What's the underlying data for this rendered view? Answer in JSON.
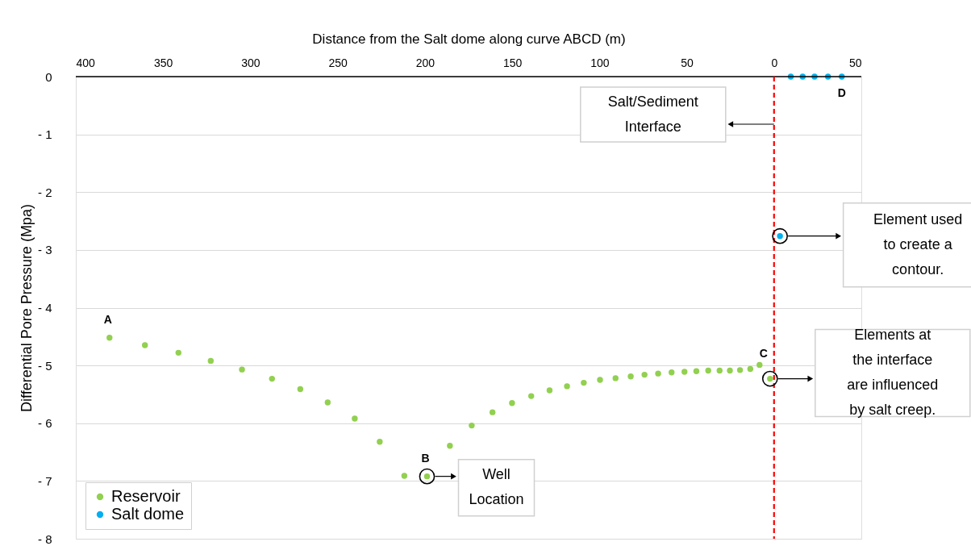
{
  "chart_data": {
    "type": "scatter",
    "xlabel": "Distance from the Salt dome along curve ABCD (m)",
    "ylabel": "Differential Pore Pressure (Mpa)",
    "xlim": [
      400,
      -50
    ],
    "xticks": [
      400,
      350,
      300,
      250,
      200,
      150,
      100,
      50,
      0,
      {
        "value": -50,
        "label": "50"
      }
    ],
    "ylim": [
      -8,
      0
    ],
    "yticks": [
      0,
      {
        "value": -1,
        "label": "- 1"
      },
      {
        "value": -2,
        "label": "- 2"
      },
      {
        "value": -3,
        "label": "- 3"
      },
      {
        "value": -4,
        "label": "- 4"
      },
      {
        "value": -5,
        "label": "- 5"
      },
      {
        "value": -6,
        "label": "- 6"
      },
      {
        "value": -7,
        "label": "- 7"
      },
      {
        "value": -8,
        "label": "- 8"
      }
    ],
    "grid": "y",
    "legend": "bottom left",
    "marker": "circle",
    "series": [
      {
        "name": "Reservoir",
        "color": "#92d050",
        "x": [
          380.7,
          360.4,
          341.2,
          322.7,
          304.8,
          287.6,
          271.4,
          255.7,
          240.2,
          225.9,
          211.8,
          198.8,
          185.7,
          173.2,
          161.3,
          150.1,
          139.1,
          128.6,
          118.6,
          109.0,
          99.7,
          90.8,
          82.1,
          74.2,
          66.4,
          58.7,
          51.3,
          44.5,
          37.7,
          31.2,
          25.3,
          19.5,
          13.6,
          8.3,
          2.3
        ],
        "values": [
          -4.52,
          -4.65,
          -4.78,
          -4.92,
          -5.07,
          -5.23,
          -5.41,
          -5.64,
          -5.92,
          -6.32,
          -6.91,
          -6.92,
          -6.39,
          -6.04,
          -5.81,
          -5.65,
          -5.53,
          -5.43,
          -5.36,
          -5.3,
          -5.25,
          -5.22,
          -5.19,
          -5.16,
          -5.14,
          -5.12,
          -5.11,
          -5.1,
          -5.09,
          -5.09,
          -5.09,
          -5.08,
          -5.06,
          -4.99,
          -5.23
        ]
      },
      {
        "name": "Salt dome",
        "color": "#00b0f0",
        "x": [
          -9.6,
          -16.4,
          -23.2,
          -30.9,
          -38.8,
          -3.4
        ],
        "values": [
          0,
          0,
          0,
          0,
          0,
          -2.76
        ]
      }
    ],
    "ref_lines": [
      {
        "axis": "x",
        "value": 0,
        "color": "#ff0000",
        "line_style": "dashed"
      }
    ],
    "annotations": [
      {
        "text": "A",
        "x": 380.7,
        "y": -4.52
      },
      {
        "text": "B",
        "x": 198.8,
        "y": -6.92
      },
      {
        "text": "C",
        "x": 8.3,
        "y": -4.99
      },
      {
        "text": "D",
        "x": -38.8,
        "y": 0
      },
      "Salt/Sediment Interface",
      {
        "text": "Well Location",
        "x": 198.8,
        "y": -6.92
      },
      "Element used to create a contour.",
      "Elements at the interface are influenced by salt creep."
    ]
  }
}
